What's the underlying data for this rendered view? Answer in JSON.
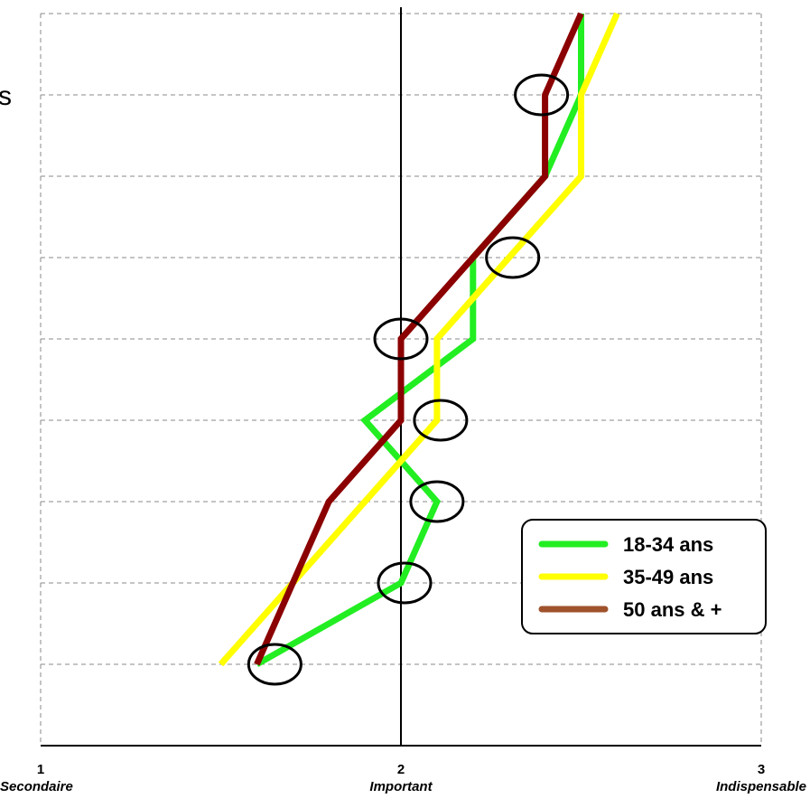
{
  "cut_label": "s",
  "chart_data": {
    "type": "line",
    "orientation": "horizontal",
    "xlim": [
      1,
      3
    ],
    "x_ticks": [
      {
        "value": 1,
        "number": "1",
        "label": "Secondaire"
      },
      {
        "value": 2,
        "number": "2",
        "label": "Important"
      },
      {
        "value": 3,
        "number": "3",
        "label": "Indispensable"
      }
    ],
    "rows": 9,
    "grid": "dashed",
    "reference_line": 2,
    "series": [
      {
        "name": "18-34 ans",
        "color": "#22ee22",
        "values": [
          1.6,
          2.0,
          2.1,
          1.9,
          2.2,
          2.2,
          2.4,
          2.5,
          2.5
        ]
      },
      {
        "name": "35-49 ans",
        "color": "#ffff00",
        "values": [
          1.5,
          1.7,
          1.9,
          2.1,
          2.1,
          2.3,
          2.5,
          2.5,
          2.6
        ]
      },
      {
        "name": "50 ans & +",
        "color": "#8b0000",
        "legend_color": "#a0522d",
        "values": [
          1.6,
          1.7,
          1.8,
          2.0,
          2.0,
          2.2,
          2.4,
          2.4,
          2.5
        ]
      }
    ],
    "highlight_circles": [
      {
        "row": 1,
        "x": 1.65
      },
      {
        "row": 2,
        "x": 2.01
      },
      {
        "row": 3,
        "x": 2.1
      },
      {
        "row": 4,
        "x": 2.11
      },
      {
        "row": 5,
        "x": 2.0
      },
      {
        "row": 6,
        "x": 2.31
      },
      {
        "row": 8,
        "x": 2.39
      }
    ],
    "legend": {
      "position": "bottom-right"
    }
  }
}
